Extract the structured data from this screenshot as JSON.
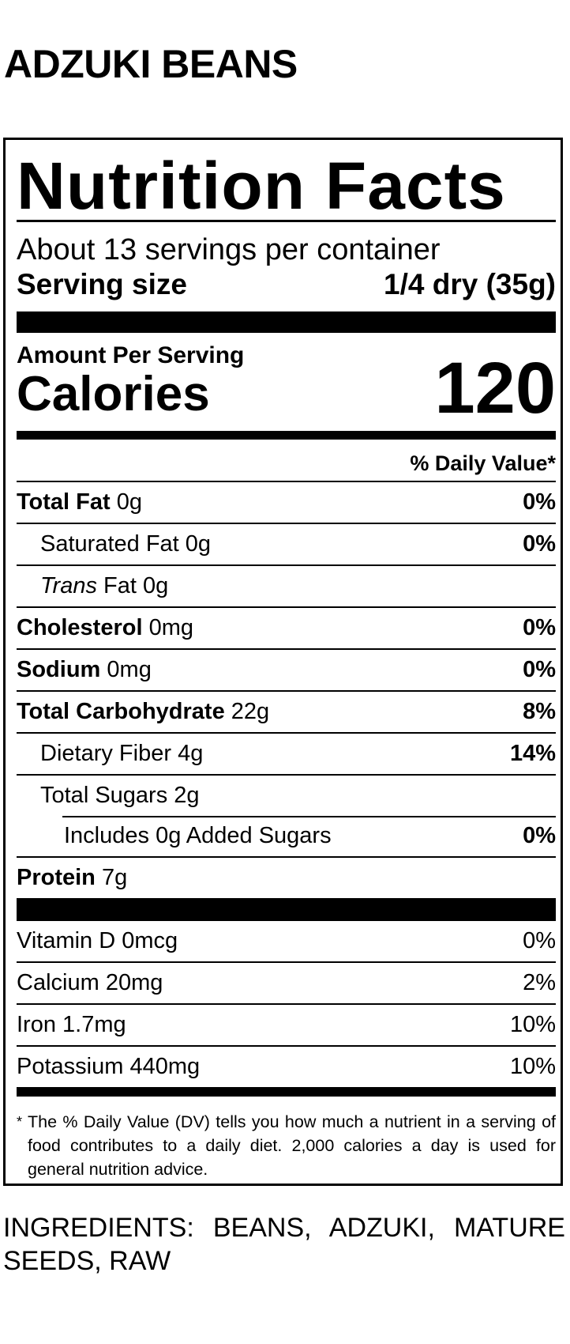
{
  "product_name": "ADZUKI BEANS",
  "label": {
    "heading": "Nutrition Facts",
    "servings_per_container": "About 13 servings per container",
    "serving_size_label": "Serving size",
    "serving_size_value": "1/4 dry (35g)",
    "amount_per_serving": "Amount Per Serving",
    "calories_label": "Calories",
    "calories_value": "120",
    "daily_value_header": "% Daily Value*",
    "nutrients": [
      {
        "name": "Total Fat",
        "amount": "0g",
        "dv": "0%"
      },
      {
        "name": "Saturated Fat",
        "amount": "0g",
        "dv": "0%"
      },
      {
        "name_italic": "Trans",
        "name": "Fat",
        "amount": "0g",
        "dv": ""
      },
      {
        "name": "Cholesterol",
        "amount": "0mg",
        "dv": "0%"
      },
      {
        "name": "Sodium",
        "amount": "0mg",
        "dv": "0%"
      },
      {
        "name": "Total Carbohydrate",
        "amount": "22g",
        "dv": "8%"
      },
      {
        "name": "Dietary Fiber",
        "amount": "4g",
        "dv": "14%"
      },
      {
        "name": "Total Sugars",
        "amount": "2g",
        "dv": ""
      },
      {
        "name": "Includes 0g Added Sugars",
        "amount": "",
        "dv": "0%"
      },
      {
        "name": "Protein",
        "amount": "7g",
        "dv": ""
      }
    ],
    "vitamins": [
      {
        "name": "Vitamin D",
        "amount": "0mcg",
        "dv": "0%"
      },
      {
        "name": "Calcium",
        "amount": "20mg",
        "dv": "2%"
      },
      {
        "name": "Iron",
        "amount": "1.7mg",
        "dv": "10%"
      },
      {
        "name": "Potassium",
        "amount": "440mg",
        "dv": "10%"
      }
    ],
    "footnote_marker": "*",
    "footnote": "The % Daily Value (DV) tells you how much a nutrient in a serving of food contributes to a daily diet. 2,000 calories a day is used for general nutrition advice."
  },
  "ingredients": "INGREDIENTS: BEANS, ADZUKI, MATURE SEEDS, RAW"
}
